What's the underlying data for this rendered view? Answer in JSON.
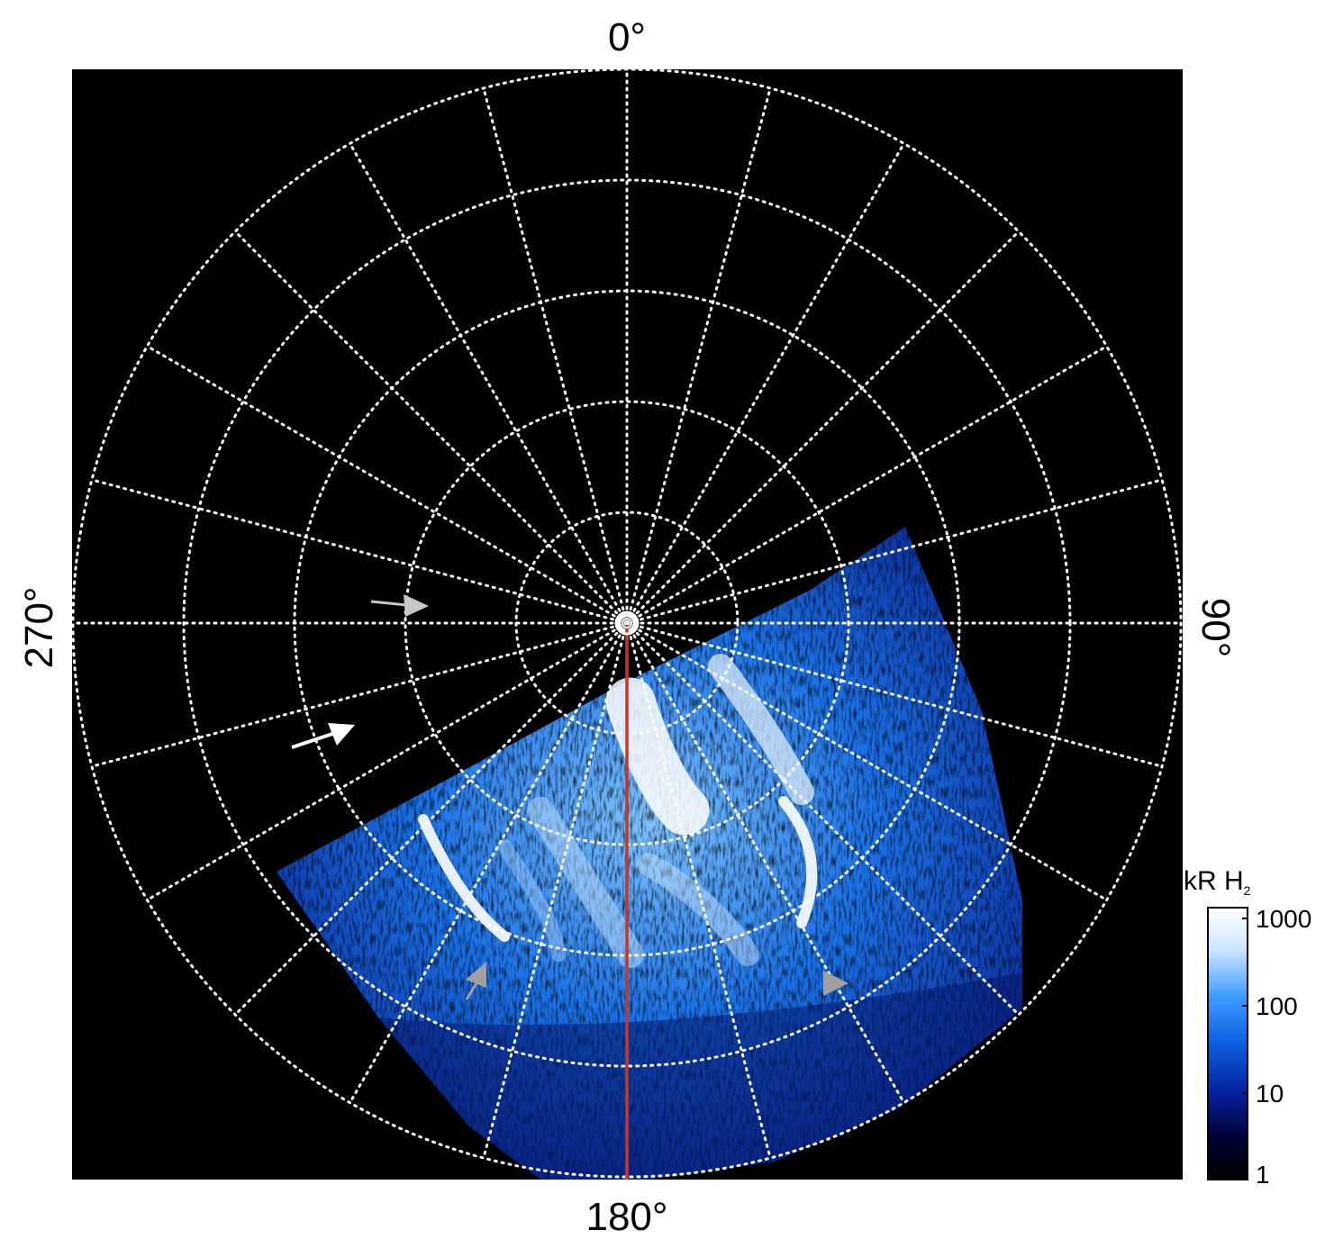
{
  "map_labels": {
    "top": "0°",
    "bottom": "180°",
    "left": "270°",
    "right": "90°"
  },
  "colorbar": {
    "title": "kR H",
    "title_subscript": "2",
    "ticks": [
      "1000",
      "100",
      "10",
      "1"
    ],
    "colors": [
      "#ffffff",
      "#cfe6ff",
      "#3d9bff",
      "#0b5fe0",
      "#06229c",
      "#000033",
      "#000000"
    ]
  },
  "colors": {
    "background": "#000000",
    "grid": "#ffffff",
    "meridian_line": "#c0392b",
    "annotation_white": "#ffffff",
    "annotation_gray": "#a0a0a0"
  }
}
